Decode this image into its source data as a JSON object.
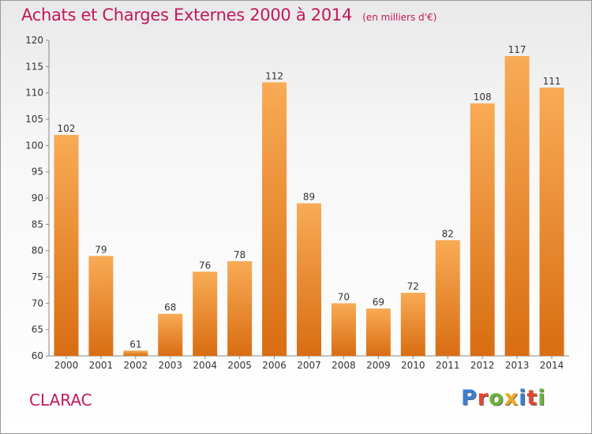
{
  "title": "Achats et Charges Externes 2000 à 2014",
  "subtitle": "(en milliers d'€)",
  "city": "CLARAC",
  "logo": {
    "letters": [
      "P",
      "r",
      "o",
      "x",
      "i",
      "t",
      "i"
    ],
    "colors": [
      "#3a7fd5",
      "#e8442c",
      "#6bb33a",
      "#f2a81d",
      "#3a7fd5",
      "#e8442c",
      "#6bb33a"
    ]
  },
  "colors": {
    "bar_light": "#f8ab55",
    "bar_dark": "#d96d12",
    "title": "#c2185b"
  },
  "chart_data": {
    "type": "bar",
    "categories": [
      "2000",
      "2001",
      "2002",
      "2003",
      "2004",
      "2005",
      "2006",
      "2007",
      "2008",
      "2009",
      "2010",
      "2011",
      "2012",
      "2013",
      "2014"
    ],
    "values": [
      102,
      79,
      61,
      68,
      76,
      78,
      112,
      89,
      70,
      69,
      72,
      82,
      108,
      117,
      111
    ],
    "ylim": [
      60,
      120
    ],
    "yticks": [
      60,
      65,
      70,
      75,
      80,
      85,
      90,
      95,
      100,
      105,
      110,
      115,
      120
    ],
    "grid": false
  }
}
